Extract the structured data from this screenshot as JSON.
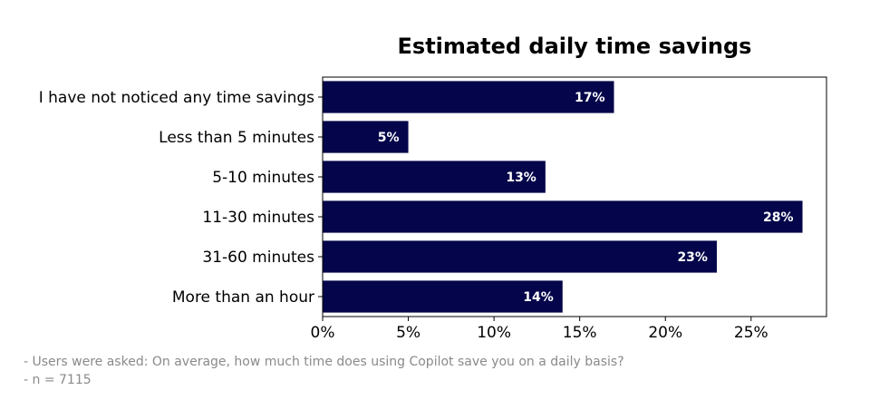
{
  "chart_data": {
    "type": "bar",
    "orientation": "horizontal",
    "title": "Estimated daily time savings",
    "categories": [
      "I have not noticed any time savings",
      "Less than 5 minutes",
      "5-10 minutes",
      "11-30 minutes",
      "31-60 minutes",
      "More than an hour"
    ],
    "values": [
      17,
      5,
      13,
      28,
      23,
      14
    ],
    "value_labels": [
      "17%",
      "5%",
      "13%",
      "28%",
      "23%",
      "14%"
    ],
    "xlim": [
      0,
      29.4
    ],
    "xticks": [
      0,
      5,
      10,
      15,
      20,
      25
    ],
    "xtick_labels": [
      "0%",
      "5%",
      "10%",
      "15%",
      "20%",
      "25%"
    ],
    "bar_color": "#04054a",
    "grid": false
  },
  "notes": {
    "question": "- Users were asked: On average, how much time does using Copilot save you on a daily basis?",
    "n": "- n = 7115"
  }
}
